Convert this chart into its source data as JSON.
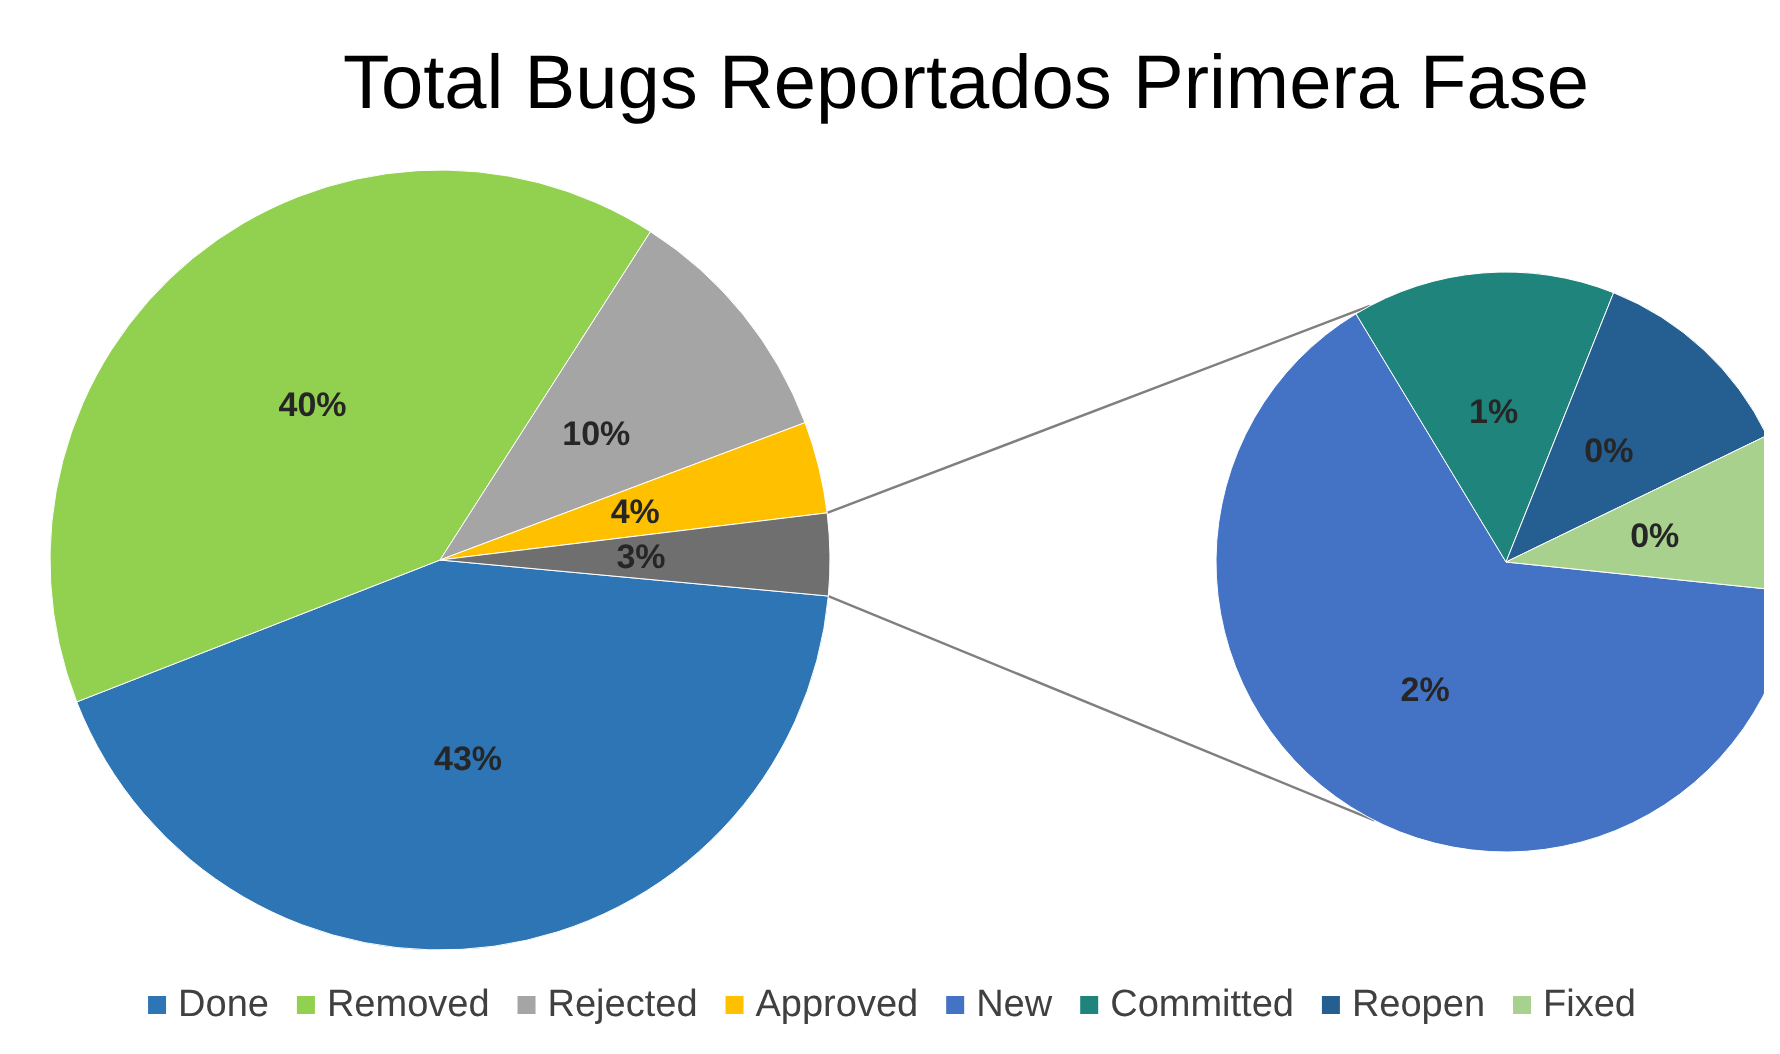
{
  "chart_data": [
    {
      "type": "pie",
      "title": "Total Bugs Reportados Primera Fase",
      "categories": [
        "Done",
        "Removed",
        "Rejected",
        "Approved",
        null
      ],
      "values": [
        42.6,
        40,
        10.2,
        3.8,
        3.4
      ],
      "colors": [
        "#2e75b6",
        "#92d050",
        "#a5a5a5",
        "#ffc000",
        "#6f6f6f"
      ],
      "value_labels": [
        "43%",
        "40%",
        "10%",
        "4%",
        "3%"
      ],
      "legend": "bottom"
    },
    {
      "type": "pie",
      "categories": [
        "New",
        "Committed",
        "Reopen",
        "Fixed"
      ],
      "values": [
        2.2,
        0.5,
        0.4,
        0.3
      ],
      "colors": [
        "#4472c4",
        "#1f857c",
        "#255e91",
        "#a9d18e"
      ],
      "value_labels": [
        "2%",
        "1%",
        "0%",
        "0%"
      ],
      "legend": "bottom"
    }
  ]
}
